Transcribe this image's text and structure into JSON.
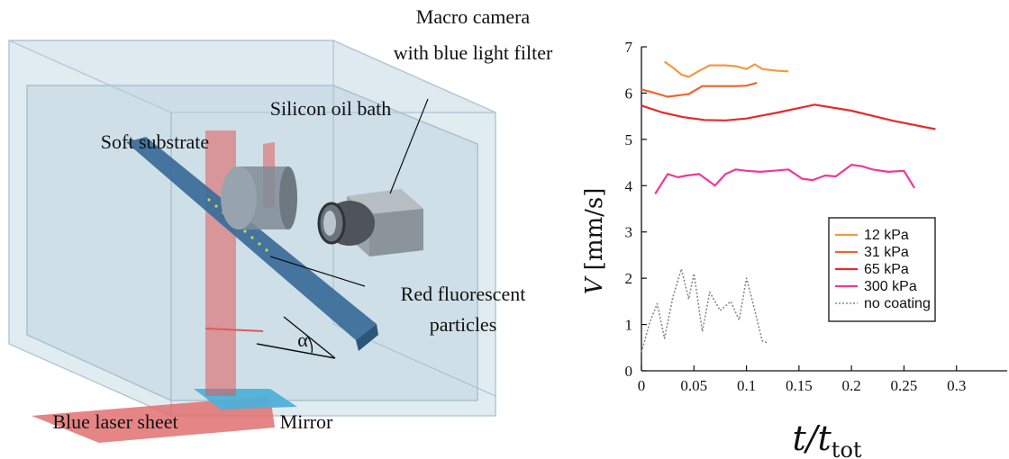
{
  "schematic": {
    "labels": {
      "macro_camera_line1": "Macro camera",
      "macro_camera_line2": "with blue light filter",
      "oil_bath": "Silicon oil bath",
      "soft_substrate": "Soft substrate",
      "particles_line1": "Red fluorescent",
      "particles_line2": "particles",
      "angle": "α",
      "laser_sheet": "Blue laser sheet",
      "mirror": "Mirror"
    }
  },
  "chart_data": {
    "type": "line",
    "xlabel": "t/t",
    "xlabel_sub": "tot",
    "ylabel": "V [mm/s]",
    "xlim": [
      0,
      0.35
    ],
    "ylim": [
      0,
      7
    ],
    "xticks": [
      0,
      0.05,
      0.1,
      0.15,
      0.2,
      0.25,
      0.3
    ],
    "xtick_labels": [
      "0",
      "0.05",
      "0.1",
      "0.15",
      "0.2",
      "0.25",
      "0.3"
    ],
    "yticks": [
      0,
      1,
      2,
      3,
      4,
      5,
      6,
      7
    ],
    "ytick_labels": [
      "0",
      "1",
      "2",
      "3",
      "4",
      "5",
      "6",
      "7"
    ],
    "legend_position": "right",
    "series": [
      {
        "name": "12   kPa",
        "color": "#f39a3c",
        "dash": false,
        "x": [
          0.022,
          0.03,
          0.038,
          0.045,
          0.055,
          0.065,
          0.08,
          0.09,
          0.1,
          0.108,
          0.115,
          0.122,
          0.13,
          0.14
        ],
        "y": [
          6.68,
          6.55,
          6.4,
          6.35,
          6.48,
          6.6,
          6.6,
          6.58,
          6.52,
          6.62,
          6.52,
          6.5,
          6.48,
          6.47
        ]
      },
      {
        "name": "31   kPa",
        "color": "#ec6530",
        "dash": false,
        "x": [
          0.0,
          0.01,
          0.025,
          0.045,
          0.058,
          0.068,
          0.075,
          0.09,
          0.1,
          0.11
        ],
        "y": [
          6.08,
          6.02,
          5.92,
          5.98,
          6.15,
          6.15,
          6.15,
          6.15,
          6.16,
          6.22
        ]
      },
      {
        "name": "65   kPa",
        "color": "#e42b2b",
        "dash": false,
        "x": [
          0.0,
          0.02,
          0.04,
          0.06,
          0.08,
          0.1,
          0.13,
          0.165,
          0.2,
          0.24,
          0.28
        ],
        "y": [
          5.73,
          5.58,
          5.48,
          5.42,
          5.41,
          5.45,
          5.58,
          5.75,
          5.62,
          5.4,
          5.22
        ]
      },
      {
        "name": "300 kPa",
        "color": "#ec3a9a",
        "dash": false,
        "x": [
          0.013,
          0.025,
          0.035,
          0.043,
          0.055,
          0.063,
          0.07,
          0.08,
          0.09,
          0.1,
          0.113,
          0.125,
          0.14,
          0.153,
          0.163,
          0.175,
          0.185,
          0.2,
          0.21,
          0.22,
          0.235,
          0.25,
          0.26
        ],
        "y": [
          3.82,
          4.25,
          4.18,
          4.22,
          4.25,
          4.12,
          4.0,
          4.25,
          4.35,
          4.32,
          4.3,
          4.32,
          4.35,
          4.15,
          4.12,
          4.22,
          4.2,
          4.45,
          4.42,
          4.35,
          4.3,
          4.32,
          3.95
        ]
      },
      {
        "name": "no coating",
        "color": "#888888",
        "dash": true,
        "x": [
          0.0,
          0.008,
          0.015,
          0.022,
          0.03,
          0.038,
          0.045,
          0.05,
          0.058,
          0.065,
          0.075,
          0.085,
          0.093,
          0.1,
          0.108,
          0.115,
          0.12
        ],
        "y": [
          0.4,
          1.05,
          1.45,
          0.7,
          1.6,
          2.2,
          1.55,
          2.1,
          0.85,
          1.7,
          1.3,
          1.5,
          1.1,
          2.0,
          1.3,
          0.65,
          0.6
        ]
      }
    ]
  }
}
